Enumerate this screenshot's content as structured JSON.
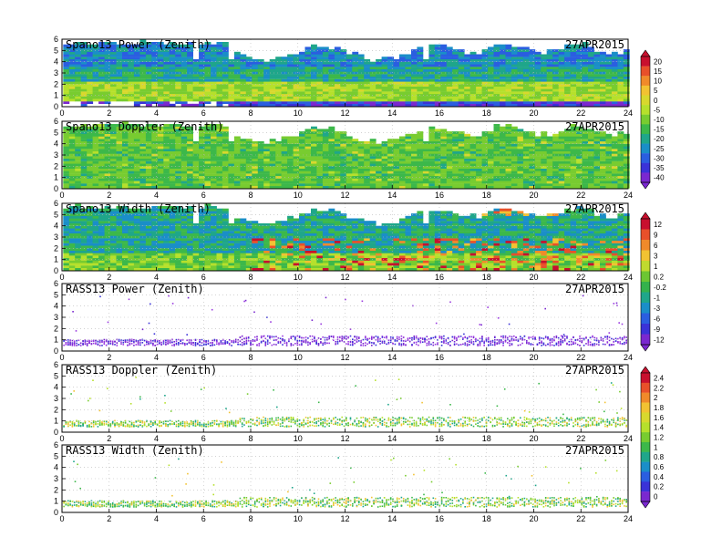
{
  "chart_data": [
    {
      "type": "heatmap",
      "title": "Spano13 Power (Zenith)",
      "date": "27APR2015",
      "xlim": [
        0,
        24
      ],
      "ylim": [
        0,
        6
      ],
      "xticks": [
        "0",
        "2",
        "4",
        "6",
        "8",
        "10",
        "12",
        "14",
        "16",
        "18",
        "20",
        "22",
        "24"
      ],
      "yticks": [
        "0",
        "1",
        "2",
        "3",
        "4",
        "5",
        "6"
      ],
      "colorbar": "power"
    },
    {
      "type": "heatmap",
      "title": "Spano13 Doppler (Zenith)",
      "date": "27APR2015",
      "xlim": [
        0,
        24
      ],
      "ylim": [
        0,
        6
      ],
      "xticks": [
        "0",
        "2",
        "4",
        "6",
        "8",
        "10",
        "12",
        "14",
        "16",
        "18",
        "20",
        "22",
        "24"
      ],
      "yticks": [
        "0",
        "1",
        "2",
        "3",
        "4",
        "5",
        "6"
      ],
      "colorbar": "power"
    },
    {
      "type": "heatmap",
      "title": "Spano13 Width (Zenith)",
      "date": "27APR2015",
      "xlim": [
        0,
        24
      ],
      "ylim": [
        0,
        6
      ],
      "xticks": [
        "0",
        "2",
        "4",
        "6",
        "8",
        "10",
        "12",
        "14",
        "16",
        "18",
        "20",
        "22",
        "24"
      ],
      "yticks": [
        "0",
        "1",
        "2",
        "3",
        "4",
        "5",
        "6"
      ],
      "colorbar": "doppler"
    },
    {
      "type": "heatmap",
      "title": "RASS13 Power (Zenith)",
      "date": "27APR2015",
      "xlim": [
        0,
        24
      ],
      "ylim": [
        0,
        6
      ],
      "xticks": [
        "0",
        "2",
        "4",
        "6",
        "8",
        "10",
        "12",
        "14",
        "16",
        "18",
        "20",
        "22",
        "24"
      ],
      "yticks": [
        "0",
        "1",
        "2",
        "3",
        "4",
        "5",
        "6"
      ],
      "colorbar": "doppler"
    },
    {
      "type": "heatmap",
      "title": "RASS13 Doppler (Zenith)",
      "date": "27APR2015",
      "xlim": [
        0,
        24
      ],
      "ylim": [
        0,
        6
      ],
      "xticks": [
        "0",
        "2",
        "4",
        "6",
        "8",
        "10",
        "12",
        "14",
        "16",
        "18",
        "20",
        "22",
        "24"
      ],
      "yticks": [
        "0",
        "1",
        "2",
        "3",
        "4",
        "5",
        "6"
      ],
      "colorbar": "width"
    },
    {
      "type": "heatmap",
      "title": "RASS13 Width (Zenith)",
      "date": "27APR2015",
      "xlim": [
        0,
        24
      ],
      "ylim": [
        0,
        6
      ],
      "xticks": [
        "0",
        "2",
        "4",
        "6",
        "8",
        "10",
        "12",
        "14",
        "16",
        "18",
        "20",
        "22",
        "24"
      ],
      "yticks": [
        "0",
        "1",
        "2",
        "3",
        "4",
        "5",
        "6"
      ],
      "colorbar": "width"
    }
  ],
  "colorbars": {
    "power": {
      "labels": [
        "20",
        "15",
        "10",
        "5",
        "0",
        "-5",
        "-10",
        "-15",
        "-20",
        "-25",
        "-30",
        "-35",
        "-40"
      ],
      "colors": [
        "#c8102e",
        "#e8502a",
        "#f08a2a",
        "#f2c232",
        "#d8d82e",
        "#b6e02c",
        "#78cc30",
        "#3cb84a",
        "#1fa68a",
        "#1a8ec8",
        "#2a5ee0",
        "#3a32d8",
        "#7a28d0"
      ]
    },
    "doppler": {
      "labels": [
        "12",
        "9",
        "6",
        "3",
        "1",
        "0.2",
        "-0.2",
        "-1",
        "-3",
        "-6",
        "-9",
        "-12"
      ],
      "colors": [
        "#c8102e",
        "#e8502a",
        "#f08a2a",
        "#f2c232",
        "#c0da2e",
        "#6cc632",
        "#34b24c",
        "#1fa68a",
        "#1a8ec8",
        "#2a5ee0",
        "#3a32d8",
        "#7a28d0"
      ]
    },
    "width": {
      "labels": [
        "2.4",
        "2.2",
        "2",
        "1.8",
        "1.6",
        "1.4",
        "1.2",
        "1",
        "0.8",
        "0.6",
        "0.4",
        "0.2",
        "0"
      ],
      "colors": [
        "#c8102e",
        "#e8502a",
        "#f08a2a",
        "#f2c232",
        "#d8d82e",
        "#b6e02c",
        "#78cc30",
        "#3cb84a",
        "#1fa68a",
        "#1a8ec8",
        "#2a5ee0",
        "#3a32d8",
        "#7a28d0"
      ]
    }
  }
}
